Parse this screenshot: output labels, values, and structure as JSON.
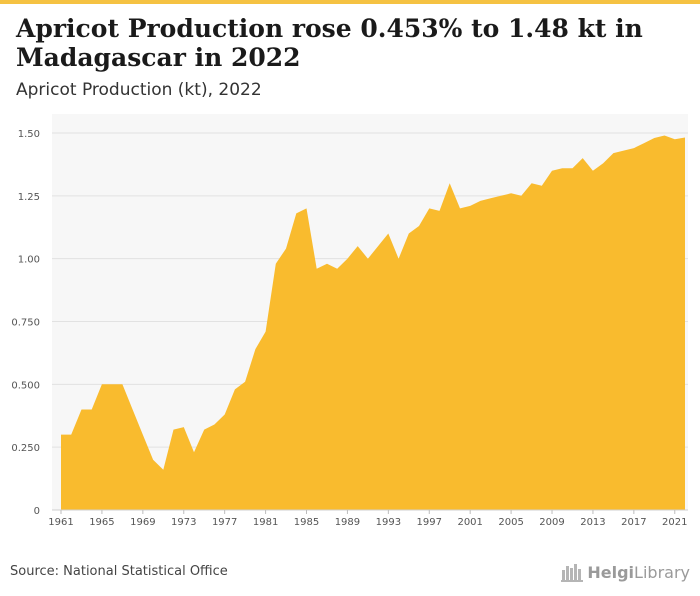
{
  "header": {
    "title": "Apricot Production rose 0.453% to 1.48 kt in Madagascar in 2022",
    "subtitle": "Apricot Production (kt), 2022"
  },
  "footer": {
    "source": "Source: National Statistical Office",
    "logo_bold": "Helgi",
    "logo_rest": "Library"
  },
  "colors": {
    "area": "#f9bb2e",
    "top_bar": "#f5c242",
    "plot_bg": "#f7f7f7",
    "grid": "#e2e2e2"
  },
  "chart_data": {
    "type": "area",
    "title": "Apricot Production rose 0.453% to 1.48 kt in Madagascar in 2022",
    "subtitle": "Apricot Production (kt), 2022",
    "xlabel": "",
    "ylabel": "",
    "grid": true,
    "ylim": [
      0,
      1.5
    ],
    "yticks": [
      0,
      0.25,
      0.5,
      0.75,
      1.0,
      1.25,
      1.5
    ],
    "ytick_labels": [
      "0",
      "0.250",
      "0.500",
      "0.750",
      "1.00",
      "1.25",
      "1.50"
    ],
    "xticks": [
      1961,
      1965,
      1969,
      1973,
      1977,
      1981,
      1985,
      1989,
      1993,
      1997,
      2001,
      2005,
      2009,
      2013,
      2017,
      2021
    ],
    "x": [
      1961,
      1962,
      1963,
      1964,
      1965,
      1966,
      1967,
      1968,
      1969,
      1970,
      1971,
      1972,
      1973,
      1974,
      1975,
      1976,
      1977,
      1978,
      1979,
      1980,
      1981,
      1982,
      1983,
      1984,
      1985,
      1986,
      1987,
      1988,
      1989,
      1990,
      1991,
      1992,
      1993,
      1994,
      1995,
      1996,
      1997,
      1998,
      1999,
      2000,
      2001,
      2002,
      2003,
      2004,
      2005,
      2006,
      2007,
      2008,
      2009,
      2010,
      2011,
      2012,
      2013,
      2014,
      2015,
      2016,
      2017,
      2018,
      2019,
      2020,
      2021,
      2022
    ],
    "series": [
      {
        "values": [
          0.3,
          0.3,
          0.4,
          0.4,
          0.5,
          0.5,
          0.5,
          0.4,
          0.3,
          0.2,
          0.16,
          0.32,
          0.33,
          0.23,
          0.32,
          0.34,
          0.38,
          0.48,
          0.51,
          0.64,
          0.71,
          0.98,
          1.04,
          1.18,
          1.2,
          0.96,
          0.98,
          0.96,
          1.0,
          1.05,
          1.0,
          1.05,
          1.1,
          1.0,
          1.1,
          1.13,
          1.2,
          1.19,
          1.3,
          1.2,
          1.21,
          1.23,
          1.24,
          1.25,
          1.26,
          1.25,
          1.3,
          1.29,
          1.35,
          1.36,
          1.36,
          1.4,
          1.35,
          1.38,
          1.42,
          1.43,
          1.44,
          1.46,
          1.48,
          1.49,
          1.475,
          1.482
        ]
      }
    ]
  }
}
